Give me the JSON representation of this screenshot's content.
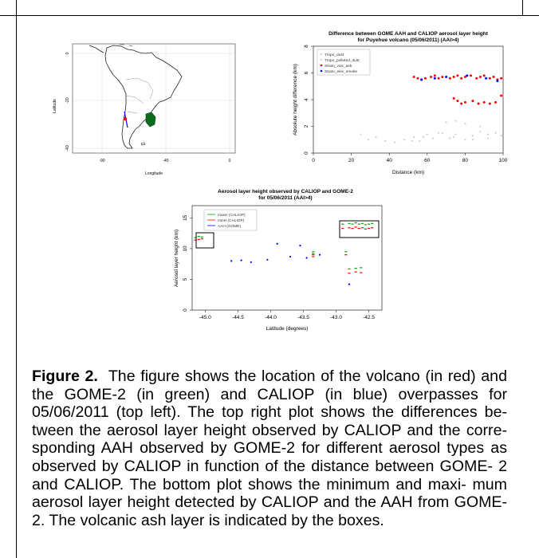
{
  "map": {
    "ylabel": "Latitude",
    "xlabel": "Longitude",
    "lat_ticks": [
      "0",
      "-20",
      "-40"
    ],
    "lon_ticks": [
      "-90",
      "-45",
      "0"
    ]
  },
  "plot_right": {
    "title_line1": "Difference between GOME AAH and CALIOP aerosol layer height",
    "title_line2": "for Puyehue volcano (05/06/2011) (AAI>4)",
    "ylabel": "Absolute height difference (km)",
    "xlabel": "Distance (km)",
    "legend": [
      "Tropo_dust",
      "Tropo_polluted_dust",
      "Strato_volc_ash",
      "Strato_elev_smoke"
    ],
    "colors": {
      "tropo_dust": "#cfcfcf",
      "tropo_polluted": "#cfcfcf",
      "volc_ash": "#ff0000",
      "elev_smoke": "#0000ff"
    }
  },
  "plot_bottom": {
    "title_line1": "Aerosol layer height observed by CALIOP and GOME-2",
    "title_line2": "for 05/06/2011 (AAI>4)",
    "ylabel": "Aerosol layer height (km)",
    "xlabel": "Latitude (degrees)",
    "legend": [
      "maxH (CALIOP)",
      "minH (CALIOP)",
      "AAH (GOME)"
    ],
    "colors": {
      "maxh": "#00aa00",
      "minh": "#ff0000",
      "aah": "#0000ff"
    }
  },
  "chart_data": [
    {
      "type": "scatter",
      "title": "Difference between GOME AAH and CALIOP aerosol layer height for Puyehue volcano (05/06/2011) (AAI>4)",
      "xlabel": "Distance (km)",
      "ylabel": "Absolute height difference (km)",
      "xlim": [
        0,
        100
      ],
      "ylim": [
        0,
        8
      ],
      "xticks": [
        "0",
        "20",
        "40",
        "60",
        "80",
        "100"
      ],
      "yticks": [
        "0",
        "2",
        "4",
        "6",
        "8"
      ],
      "legend_position": "top-left",
      "series": [
        {
          "name": "Tropo_dust",
          "x": [
            25,
            29,
            33,
            38,
            43,
            48,
            53,
            56,
            60,
            63,
            68,
            72,
            75,
            80,
            84,
            88,
            92,
            96,
            99,
            70,
            75,
            80,
            88
          ],
          "y": [
            1.4,
            1.0,
            1.2,
            0.9,
            0.8,
            1.0,
            1.2,
            0.9,
            1.4,
            1.1,
            1.5,
            1.1,
            1.4,
            1.0,
            1.3,
            1.6,
            1.1,
            1.5,
            1.3,
            2.3,
            2.4,
            2.2,
            2.0
          ]
        },
        {
          "name": "Tropo_polluted_dust",
          "x": [
            52,
            58,
            66,
            74,
            84,
            92
          ],
          "y": [
            0.9,
            1.2,
            1.5,
            1.2,
            1.0,
            1.4
          ]
        },
        {
          "name": "Strato_volc_ash",
          "x": [
            53,
            55,
            57,
            59,
            62,
            64,
            66,
            68,
            72,
            74,
            76,
            78,
            80,
            83,
            86,
            88,
            90,
            93,
            95,
            97,
            99,
            74,
            76,
            78,
            80,
            84,
            87,
            90,
            93,
            96,
            99
          ],
          "y": [
            5.7,
            5.6,
            5.5,
            5.6,
            5.7,
            5.8,
            5.6,
            5.7,
            5.6,
            5.7,
            5.8,
            5.6,
            5.7,
            5.8,
            5.6,
            5.7,
            5.8,
            5.6,
            5.7,
            5.5,
            5.6,
            4.1,
            3.9,
            3.7,
            3.8,
            3.9,
            3.7,
            3.8,
            3.7,
            3.8,
            4.3
          ]
        },
        {
          "name": "Strato_elev_smoke",
          "x": [
            57,
            64,
            70,
            81,
            91,
            97
          ],
          "y": [
            5.5,
            5.6,
            5.7,
            5.8,
            5.6,
            5.4
          ]
        }
      ]
    },
    {
      "type": "scatter",
      "title": "Aerosol layer height observed by CALIOP and GOME-2 for 05/06/2011 (AAI>4)",
      "xlabel": "Latitude (degrees)",
      "ylabel": "Aerosol layer height (km)",
      "xlim": [
        -45.2,
        -42.3
      ],
      "ylim": [
        0,
        17
      ],
      "xticks": [
        "-45.0",
        "-44.5",
        "-44.0",
        "-43.5",
        "-43.0",
        "-42.5"
      ],
      "yticks": [
        "0",
        "5",
        "10",
        "15"
      ],
      "legend_position": "top-left",
      "series": [
        {
          "name": "maxH (CALIOP)",
          "x": [
            -45.15,
            -45.1,
            -45.05,
            -43.35,
            -43.35,
            -42.9,
            -42.8,
            -42.75,
            -42.7,
            -42.65,
            -42.6,
            -42.55,
            -42.5,
            -42.45,
            -42.85,
            -42.8,
            -42.7,
            -42.62
          ],
          "y": [
            11.8,
            12.0,
            11.9,
            9.5,
            9.2,
            14.0,
            14.1,
            14.0,
            14.2,
            14.0,
            14.1,
            13.9,
            14.0,
            14.1,
            9.5,
            6.7,
            6.8,
            6.9
          ]
        },
        {
          "name": "minH (CALIOP)",
          "x": [
            -45.15,
            -45.1,
            -45.05,
            -43.35,
            -43.35,
            -42.9,
            -42.8,
            -42.75,
            -42.7,
            -42.65,
            -42.6,
            -42.55,
            -42.5,
            -42.45,
            -42.85,
            -42.8,
            -42.7,
            -42.62
          ],
          "y": [
            11.4,
            11.5,
            11.6,
            9.0,
            8.7,
            13.3,
            13.4,
            13.3,
            13.5,
            13.3,
            13.4,
            13.2,
            13.3,
            13.4,
            9.0,
            6.0,
            6.2,
            6.1
          ]
        },
        {
          "name": "AAH (GOME)",
          "x": [
            -44.6,
            -44.45,
            -44.3,
            -44.05,
            -43.9,
            -43.7,
            -43.55,
            -43.45,
            -43.25,
            -42.8
          ],
          "y": [
            8.0,
            8.1,
            7.8,
            8.2,
            10.8,
            8.7,
            10.5,
            8.5,
            9.0,
            4.2
          ]
        }
      ]
    }
  ],
  "caption": {
    "label": "Figure 2.",
    "lines": [
      "The figure shows the location of the volcano (in red)",
      "and the GOME-2 (in green) and CALIOP (in blue) overpasses for",
      "05/06/2011 (top left). The top right plot shows the differences be-",
      "tween the aerosol layer height observed by CALIOP and the corre-",
      "sponding AAH observed by GOME-2 for different aerosol types as",
      "observed by CALIOP in function of the distance between GOME-",
      "2 and CALIOP. The bottom plot shows the minimum and maxi-",
      "mum aerosol layer height detected by CALIOP and the AAH from",
      "GOME-2. The volcanic ash layer is indicated by the boxes."
    ]
  }
}
